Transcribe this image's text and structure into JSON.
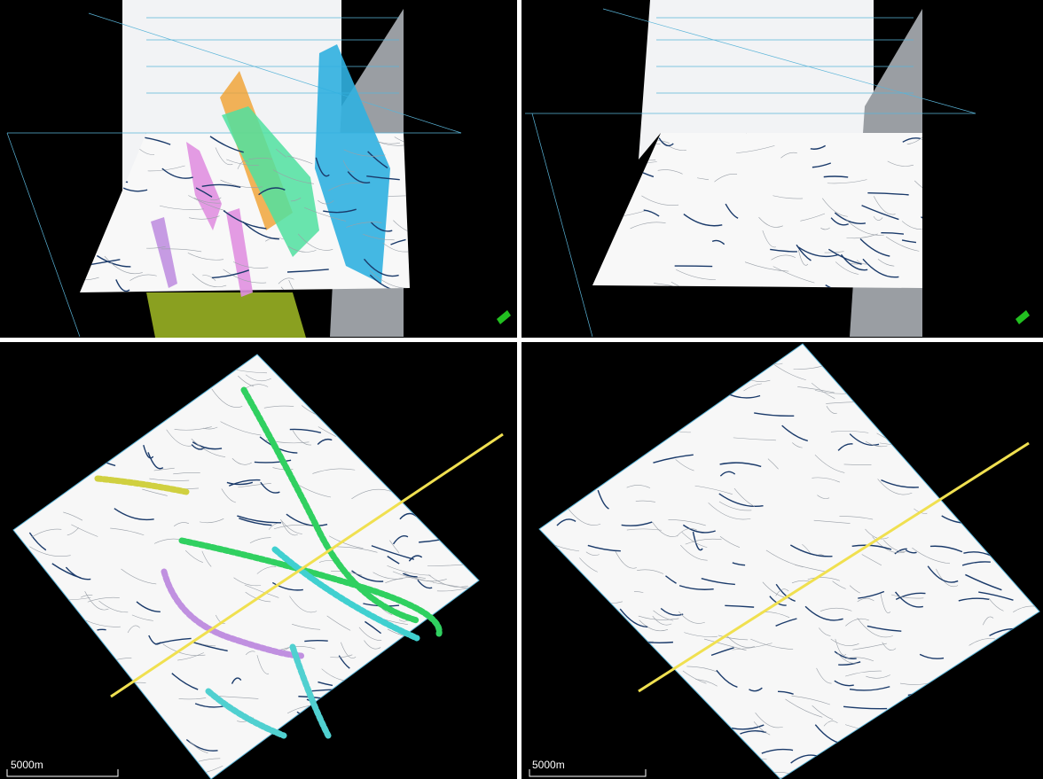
{
  "map_views": [
    {
      "scale_bar": "5000m"
    },
    {
      "scale_bar": "5000m"
    }
  ]
}
